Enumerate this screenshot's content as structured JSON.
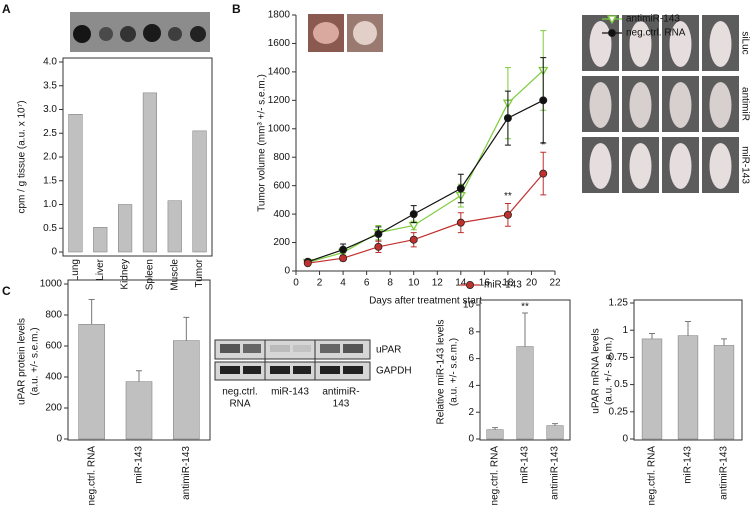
{
  "figure": {
    "panel_labels": [
      "A",
      "B",
      "C"
    ],
    "mouse_rows": [
      "siLuc",
      "antimiR",
      "miR-143"
    ],
    "blot": {
      "bands": [
        "uPAR",
        "GAPDH"
      ],
      "lanes": [
        [
          "neg.ctrl.",
          "RNA"
        ],
        [
          "miR-143"
        ],
        [
          "antimiR-",
          "143"
        ]
      ]
    }
  },
  "chart_data": [
    {
      "type": "bar",
      "y_label": [
        "cpm / g tissue (a.u. x 10⁷)"
      ],
      "categories": [
        "Lung",
        "Liver",
        "Kidney",
        "Spleen",
        "Muscle",
        "Tumor"
      ],
      "values": [
        2.9,
        0.52,
        1.0,
        3.35,
        1.08,
        2.55
      ],
      "color": "#c0c0c0",
      "ylim": [
        0,
        4
      ],
      "yticks": [
        0,
        0.5,
        {
          "value": 1,
          "label": "1.0"
        },
        1.5,
        {
          "value": 2,
          "label": "2.0"
        },
        2.5,
        {
          "value": 3,
          "label": "3.0"
        },
        3.5,
        {
          "value": 4,
          "label": "4.0"
        }
      ]
    },
    {
      "type": "line",
      "x_label": "Days after treatment start",
      "y_label": [
        "Tumor volume (mm³ +/- s.e.m.)"
      ],
      "x": [
        1,
        4,
        7,
        10,
        14,
        18,
        21
      ],
      "xlim": [
        0,
        22
      ],
      "xticks": [
        0,
        2,
        4,
        6,
        8,
        10,
        12,
        14,
        16,
        18,
        20,
        22
      ],
      "ylim": [
        0,
        1800
      ],
      "yticks": [
        0,
        200,
        400,
        600,
        800,
        1000,
        1200,
        1400,
        1600,
        1800
      ],
      "series": [
        {
          "name": "antimiR-143",
          "color": "#7ccc3c",
          "values": [
            60,
            130,
            270,
            320,
            530,
            1180,
            1410
          ],
          "errors": [
            15,
            30,
            50,
            30,
            80,
            250,
            280
          ]
        },
        {
          "name": "neg.ctrl. RNA",
          "color": "#111111",
          "values": [
            65,
            150,
            260,
            400,
            580,
            1075,
            1200
          ],
          "errors": [
            15,
            40,
            50,
            60,
            100,
            190,
            300
          ]
        },
        {
          "name": "miR-143",
          "color": "#c0302c",
          "values": [
            55,
            90,
            170,
            220,
            340,
            395,
            685
          ],
          "errors": [
            10,
            20,
            40,
            50,
            70,
            80,
            150
          ]
        }
      ],
      "annotations": [
        "**",
        "*"
      ]
    },
    {
      "type": "bar",
      "y_label": [
        "uPAR protein levels",
        "(a.u. +/- s.e.m.)"
      ],
      "categories": [
        "neg.ctrl. RNA",
        "miR-143",
        "antimiR-143"
      ],
      "values": [
        740,
        370,
        635
      ],
      "errors": [
        160,
        70,
        150
      ],
      "color": "#c0c0c0",
      "ylim": [
        0,
        1000
      ],
      "yticks": [
        0,
        200,
        400,
        600,
        800,
        1000
      ]
    },
    {
      "type": "bar",
      "y_label": [
        "Relative miR-143 levels",
        "(a.u. +/- s.e.m.)"
      ],
      "categories": [
        "neg.ctrl. RNA",
        "miR-143",
        "antimiR-143"
      ],
      "values": [
        0.7,
        6.9,
        1.0
      ],
      "errors": [
        0.15,
        2.5,
        0.15
      ],
      "color": "#c0c0c0",
      "ylim": [
        0,
        10
      ],
      "yticks": [
        0,
        2,
        4,
        6,
        8,
        10
      ],
      "annotations": [
        "**"
      ]
    },
    {
      "type": "bar",
      "y_label": [
        "uPAR mRNA levels",
        "(a.u. +/- s.e.m.)"
      ],
      "categories": [
        "neg.ctrl. RNA",
        "miR-143",
        "antimiR-143"
      ],
      "values": [
        0.92,
        0.95,
        0.86
      ],
      "errors": [
        0.05,
        0.13,
        0.06
      ],
      "color": "#c0c0c0",
      "ylim": [
        0,
        1.25
      ],
      "yticks": [
        0,
        0.25,
        0.5,
        0.75,
        1,
        1.25
      ]
    }
  ]
}
